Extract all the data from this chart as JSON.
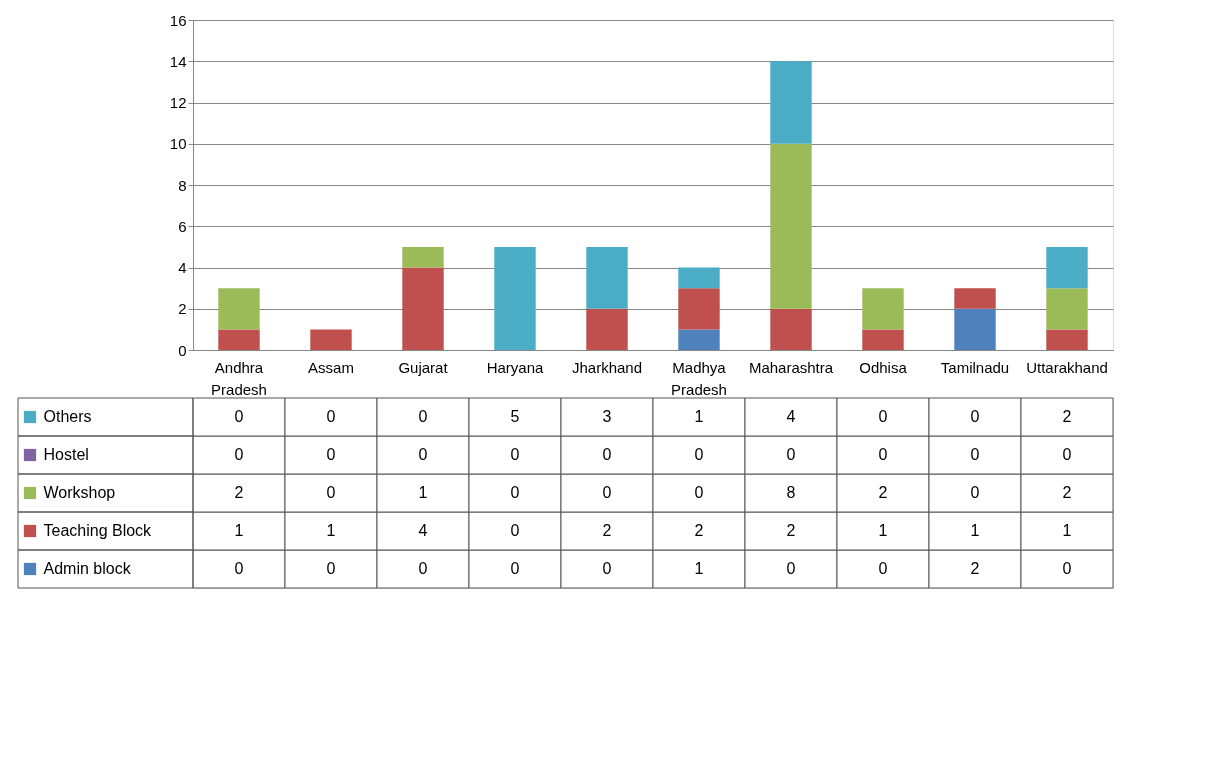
{
  "chart_data": {
    "type": "bar",
    "stacked": true,
    "categories": [
      "Andhra Pradesh",
      "Assam",
      "Gujarat",
      "Haryana",
      "Jharkhand",
      "Madhya Pradesh",
      "Maharashtra",
      "Odhisa",
      "Tamilnadu",
      "Uttarakhand"
    ],
    "series": [
      {
        "name": "Admin block",
        "color": "#4f81bd",
        "values": [
          0,
          0,
          0,
          0,
          0,
          1,
          0,
          0,
          2,
          0
        ]
      },
      {
        "name": "Teaching Block",
        "color": "#c0504d",
        "values": [
          1,
          1,
          4,
          0,
          2,
          2,
          2,
          1,
          1,
          1
        ]
      },
      {
        "name": "Workshop",
        "color": "#9bbb59",
        "values": [
          2,
          0,
          1,
          0,
          0,
          0,
          8,
          2,
          0,
          2
        ]
      },
      {
        "name": "Hostel",
        "color": "#8064a2",
        "values": [
          0,
          0,
          0,
          0,
          0,
          0,
          0,
          0,
          0,
          0
        ]
      },
      {
        "name": "Others",
        "color": "#4bacc6",
        "values": [
          0,
          0,
          0,
          5,
          3,
          1,
          4,
          0,
          0,
          2
        ]
      }
    ],
    "ylim": [
      0,
      16
    ],
    "yticks": [
      0,
      2,
      4,
      6,
      8,
      10,
      12,
      14,
      16
    ],
    "grid": "y",
    "data_labels": true,
    "legend": "bottom left"
  }
}
